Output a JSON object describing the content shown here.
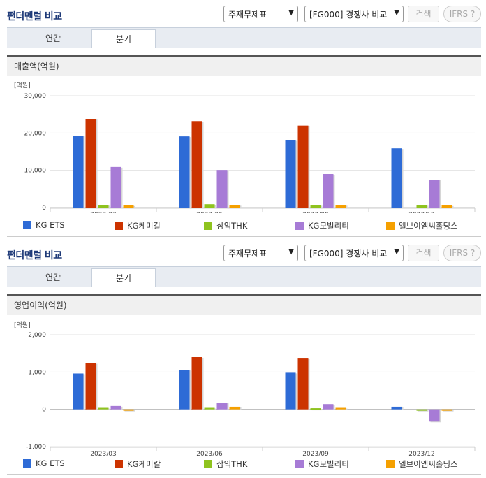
{
  "sections": [
    {
      "title": "펀더멘털 비교",
      "select_report": "주재무제표",
      "select_compare": "[FG000] 경쟁사 비교",
      "search_button": "검색",
      "ifrs_button": "IFRS ?",
      "tabs": [
        {
          "label": "연간"
        },
        {
          "label": "분기"
        }
      ],
      "chart_header": "매출액(억원)",
      "unit_label": "[억원]"
    },
    {
      "title": "펀더멘털 비교",
      "select_report": "주재무제표",
      "select_compare": "[FG000] 경쟁사 비교",
      "search_button": "검색",
      "ifrs_button": "IFRS ?",
      "tabs": [
        {
          "label": "연간"
        },
        {
          "label": "분기"
        }
      ],
      "chart_header": "영업이익(억원)",
      "unit_label": "[억원]"
    }
  ],
  "colors": {
    "KG ETS": "#2e6bd6",
    "KG케미칼": "#cc3300",
    "삼익THK": "#8fc31f",
    "KG모빌리티": "#a77bd6",
    "엘브이엠씨홀딩스": "#f5a000"
  },
  "chart_data": [
    {
      "type": "bar",
      "title": "매출액(억원)",
      "ylabel": "[억원]",
      "categories": [
        "2023/03",
        "2023/06",
        "2023/09",
        "2023/12"
      ],
      "ylim": [
        0,
        30000
      ],
      "yticks": [
        "0",
        "10,000",
        "20,000",
        "30,000"
      ],
      "series": [
        {
          "name": "KG ETS",
          "values": [
            19300,
            19100,
            18100,
            15900
          ]
        },
        {
          "name": "KG케미칼",
          "values": [
            23800,
            23200,
            22000,
            null
          ]
        },
        {
          "name": "삼익THK",
          "values": [
            700,
            900,
            700,
            700
          ]
        },
        {
          "name": "KG모빌리티",
          "values": [
            10900,
            10100,
            9000,
            7500
          ]
        },
        {
          "name": "엘브이엠씨홀딩스",
          "values": [
            600,
            700,
            700,
            600
          ]
        }
      ]
    },
    {
      "type": "bar",
      "title": "영업이익(억원)",
      "ylabel": "[억원]",
      "categories": [
        "2023/03",
        "2023/06",
        "2023/09",
        "2023/12"
      ],
      "ylim": [
        -1000,
        2000
      ],
      "yticks": [
        "-1,000",
        "0",
        "1,000",
        "2,000"
      ],
      "series": [
        {
          "name": "KG ETS",
          "values": [
            960,
            1060,
            980,
            70
          ]
        },
        {
          "name": "KG케미칼",
          "values": [
            1240,
            1400,
            1380,
            null
          ]
        },
        {
          "name": "삼익THK",
          "values": [
            40,
            40,
            30,
            0
          ]
        },
        {
          "name": "KG모빌리티",
          "values": [
            90,
            180,
            140,
            -330
          ]
        },
        {
          "name": "엘브이엠씨홀딩스",
          "values": [
            0,
            70,
            40,
            -30
          ]
        }
      ]
    }
  ]
}
